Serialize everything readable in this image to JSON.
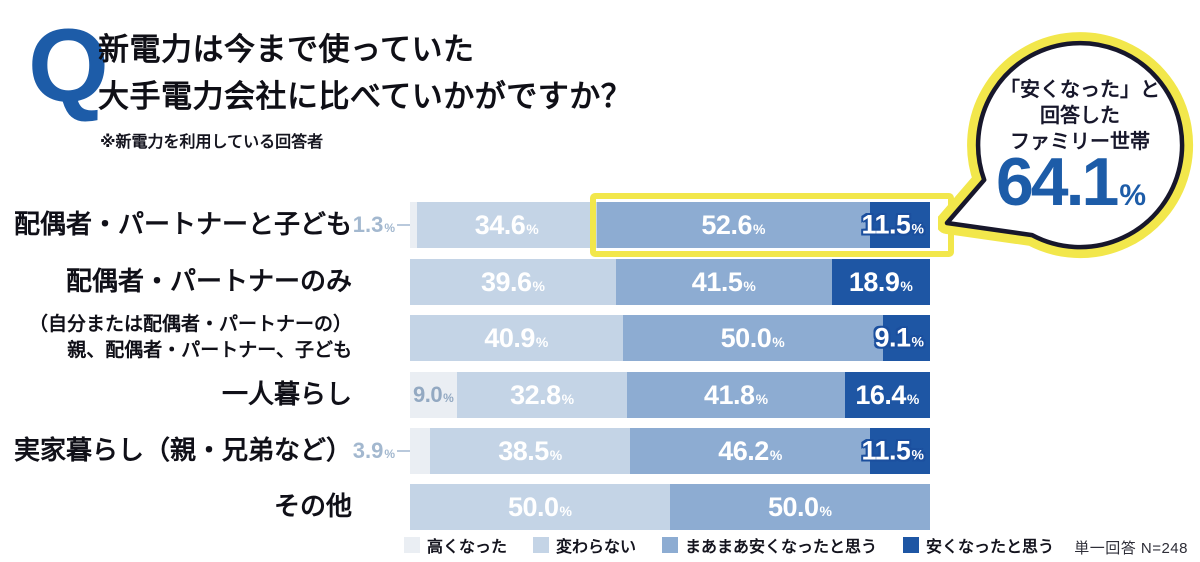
{
  "header": {
    "q_mark": "Q",
    "title_line1": "新電力は今まで使っていた",
    "title_line2": "大手電力会社に比べていかがですか？",
    "note": "※新電力を利用している回答者"
  },
  "badge": {
    "line1": "「安くなった」と",
    "line2": "回答した",
    "line3": "ファミリー世帯",
    "value": "64.1",
    "unit": "%"
  },
  "legend": [
    {
      "key": "up",
      "label": "高くなった"
    },
    {
      "key": "same",
      "label": "変わらない"
    },
    {
      "key": "somewhat",
      "label": "まあまあ安くなったと思う"
    },
    {
      "key": "cheaper",
      "label": "安くなったと思う"
    }
  ],
  "footnote": "単一回答 N=248",
  "palette": {
    "up": "#EAEEF3",
    "same": "#C4D4E6",
    "somewhat": "#8DACD2",
    "cheaper": "#1E56A4",
    "accent_blue": "#1D5CA8",
    "highlight_yellow": "#F2E74B",
    "muted_label": "#9FB3C9",
    "navy_text": "#17172B"
  },
  "chart_data": {
    "type": "bar",
    "stacked": true,
    "orientation": "horizontal",
    "unit": "%",
    "x_max": 100,
    "title": "新電力は今まで使っていた大手電力会社に比べていかがですか？",
    "subtitle": "※新電力を利用している回答者",
    "legend_position": "bottom",
    "grid": false,
    "response_note": "単一回答 N=248",
    "categories": [
      "配偶者・パートナーと子ども",
      "配偶者・パートナーのみ",
      "（自分または配偶者・パートナーの）親、配偶者・パートナー、子ども",
      "一人暮らし",
      "実家暮らし（親・兄弟など）",
      "その他"
    ],
    "series": [
      {
        "name": "高くなった",
        "values": [
          1.3,
          null,
          null,
          9.0,
          3.9,
          null
        ]
      },
      {
        "name": "変わらない",
        "values": [
          34.6,
          39.6,
          40.9,
          32.8,
          38.5,
          50.0
        ]
      },
      {
        "name": "まあまあ安くなったと思う",
        "values": [
          52.6,
          41.5,
          50.0,
          41.8,
          46.2,
          50.0
        ]
      },
      {
        "name": "安くなったと思う",
        "values": [
          11.5,
          18.9,
          9.1,
          16.4,
          11.5,
          null
        ]
      }
    ],
    "highlight_callout": {
      "text": "「安くなった」と回答したファミリー世帯",
      "value": 64.1,
      "applies_to_category": "配偶者・パートナーと子ども"
    },
    "rows": [
      {
        "label_lines": [
          "配偶者・パートナーと子ども"
        ],
        "highlight_from_segment": 2,
        "segments": [
          {
            "key": "up",
            "value": 1.3,
            "display": "1.3",
            "label_mode": "outside"
          },
          {
            "key": "same",
            "value": 34.6,
            "display": "34.6",
            "label_mode": "center"
          },
          {
            "key": "somewhat",
            "value": 52.6,
            "display": "52.6",
            "label_mode": "center"
          },
          {
            "key": "cheaper",
            "value": 11.5,
            "display": "11.5",
            "label_mode": "outline"
          }
        ]
      },
      {
        "label_lines": [
          "配偶者・パートナーのみ"
        ],
        "segments": [
          {
            "key": "same",
            "value": 39.6,
            "display": "39.6",
            "label_mode": "center"
          },
          {
            "key": "somewhat",
            "value": 41.5,
            "display": "41.5",
            "label_mode": "center"
          },
          {
            "key": "cheaper",
            "value": 18.9,
            "display": "18.9",
            "label_mode": "center"
          }
        ]
      },
      {
        "label_lines": [
          "（自分または配偶者・パートナーの）",
          "親、配偶者・パートナー、子ども"
        ],
        "segments": [
          {
            "key": "same",
            "value": 40.9,
            "display": "40.9",
            "label_mode": "center"
          },
          {
            "key": "somewhat",
            "value": 50.0,
            "display": "50.0",
            "label_mode": "center"
          },
          {
            "key": "cheaper",
            "value": 9.1,
            "display": "9.1",
            "label_mode": "outline"
          }
        ]
      },
      {
        "label_lines": [
          "一人暮らし"
        ],
        "segments": [
          {
            "key": "up",
            "value": 9.0,
            "display": "9.0",
            "label_mode": "inside-muted"
          },
          {
            "key": "same",
            "value": 32.8,
            "display": "32.8",
            "label_mode": "center"
          },
          {
            "key": "somewhat",
            "value": 41.8,
            "display": "41.8",
            "label_mode": "center"
          },
          {
            "key": "cheaper",
            "value": 16.4,
            "display": "16.4",
            "label_mode": "center"
          }
        ]
      },
      {
        "label_lines": [
          "実家暮らし（親・兄弟など）"
        ],
        "segments": [
          {
            "key": "up",
            "value": 3.9,
            "display": "3.9",
            "label_mode": "outside"
          },
          {
            "key": "same",
            "value": 38.5,
            "display": "38.5",
            "label_mode": "center"
          },
          {
            "key": "somewhat",
            "value": 46.2,
            "display": "46.2",
            "label_mode": "center"
          },
          {
            "key": "cheaper",
            "value": 11.5,
            "display": "11.5",
            "label_mode": "outline"
          }
        ]
      },
      {
        "label_lines": [
          "その他"
        ],
        "segments": [
          {
            "key": "same",
            "value": 50.0,
            "display": "50.0",
            "label_mode": "center"
          },
          {
            "key": "somewhat",
            "value": 50.0,
            "display": "50.0",
            "label_mode": "center"
          }
        ]
      }
    ]
  }
}
